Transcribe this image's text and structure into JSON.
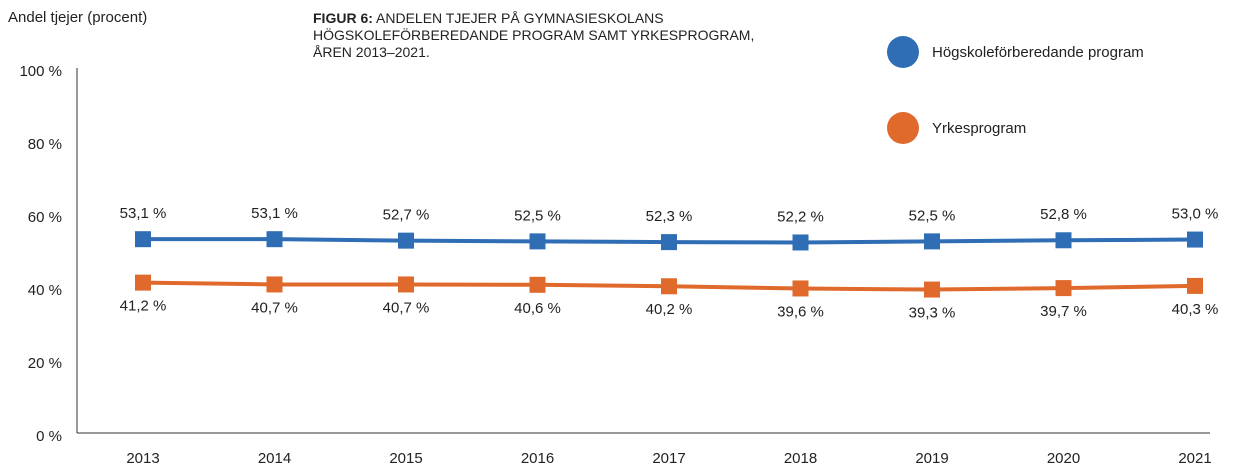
{
  "chart_data": {
    "type": "line",
    "title_prefix": "FIGUR 6:",
    "title": "ANDELEN TJEJER PÅ GYMNASIESKOLANS HÖGSKOLEFÖRBEREDANDE PROGRAM SAMT YRKESPROGRAM, ÅREN 2013–2021.",
    "y_label": "Andel tjejer (procent)",
    "categories": [
      "2013",
      "2014",
      "2015",
      "2016",
      "2017",
      "2018",
      "2019",
      "2020",
      "2021"
    ],
    "series": [
      {
        "name": "Högskoleförberedande program",
        "color": "#2f6db5",
        "values": [
          53.1,
          53.1,
          52.7,
          52.5,
          52.3,
          52.2,
          52.5,
          52.8,
          53.0
        ],
        "value_labels": [
          "53,1 %",
          "53,1 %",
          "52,7 %",
          "52,5 %",
          "52,3 %",
          "52,2 %",
          "52,5 %",
          "52,8 %",
          "53,0 %"
        ]
      },
      {
        "name": "Yrkesprogram",
        "color": "#e06a2c",
        "values": [
          41.2,
          40.7,
          40.7,
          40.6,
          40.2,
          39.6,
          39.3,
          39.7,
          40.3
        ],
        "value_labels": [
          "41,2 %",
          "40,7 %",
          "40,7 %",
          "40,6 %",
          "40,2 %",
          "39,6 %",
          "39,3 %",
          "39,7 %",
          "40,3 %"
        ]
      }
    ],
    "ylim": [
      0,
      100
    ],
    "yticks": [
      {
        "value": 0,
        "label": "0 %"
      },
      {
        "value": 20,
        "label": "20 %"
      },
      {
        "value": 40,
        "label": "40 %"
      },
      {
        "value": 60,
        "label": "60 %"
      },
      {
        "value": 80,
        "label": "80 %"
      },
      {
        "value": 100,
        "label": "100 %"
      }
    ],
    "legend": "top-right",
    "grid": false
  }
}
